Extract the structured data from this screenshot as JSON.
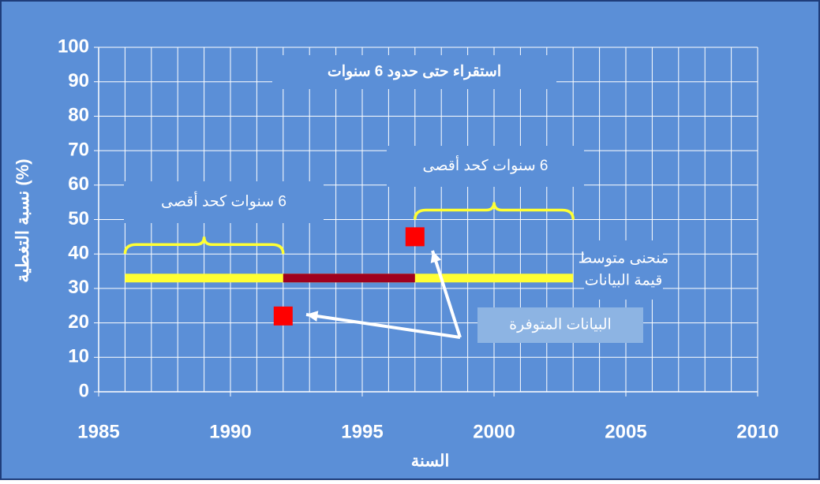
{
  "chart_data": {
    "type": "line",
    "x_label": "السنة",
    "y_label": "نسبة التغطية (%)",
    "xlim": [
      1985,
      2010
    ],
    "xticks": [
      1985,
      1990,
      1995,
      2000,
      2005,
      2010
    ],
    "ylim": [
      0,
      100
    ],
    "yticks": [
      0,
      10,
      20,
      30,
      40,
      50,
      60,
      70,
      80,
      90,
      100
    ],
    "grid": true,
    "x_grid_step": 1,
    "series": [
      {
        "kind": "line",
        "color": "#ffff33",
        "x": [
          1986,
          2003
        ],
        "values": [
          33,
          33
        ]
      },
      {
        "kind": "line",
        "color": "#a0001e",
        "x": [
          1992,
          1997
        ],
        "values": [
          33,
          33
        ]
      },
      {
        "kind": "marker",
        "color": "#ff0000",
        "x": [
          1992,
          1997
        ],
        "values": [
          22,
          45
        ]
      }
    ],
    "braces": [
      {
        "color": "#ffff33",
        "x": [
          1986,
          1992
        ],
        "y": 40
      },
      {
        "color": "#ffff33",
        "x": [
          1997,
          2003
        ],
        "y": 50
      }
    ],
    "annotations": [
      {
        "lines": [
          "استقراء حتى حدود 6 سنوات"
        ]
      },
      {
        "lines": [
          "6 سنوات كحد أقصى"
        ]
      },
      {
        "lines": [
          "6 سنوات كحد أقصى"
        ]
      },
      {
        "lines": [
          "منحنى متوسط",
          "قيمة البيانات"
        ]
      },
      {
        "lines": [
          "البيانات المتوفرة"
        ]
      }
    ]
  }
}
